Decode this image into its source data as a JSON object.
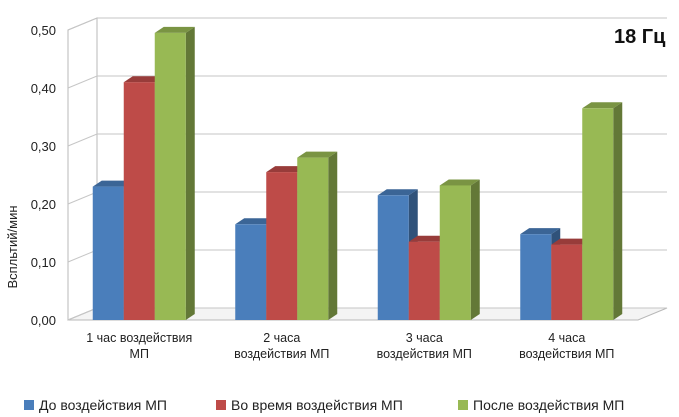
{
  "chart_data": {
    "type": "bar",
    "style": "3d-clustered",
    "annotation": "18 Гц",
    "ylabel": "Вспльтий/мин",
    "xlabel": "",
    "ylim": [
      0,
      0.5
    ],
    "yticks": [
      "0,00",
      "0,10",
      "0,20",
      "0,30",
      "0,40",
      "0,50"
    ],
    "grid": true,
    "legend_position": "bottom",
    "categories": [
      [
        "1 час воздействия",
        "МП"
      ],
      [
        "2 часа",
        "воздействия МП"
      ],
      [
        "3 часа",
        "воздействия МП"
      ],
      [
        "4 часа",
        "воздействия МП"
      ]
    ],
    "series": [
      {
        "name": "До воздействия МП",
        "color": "#4a7ebb",
        "values": [
          0.23,
          0.165,
          0.215,
          0.148
        ]
      },
      {
        "name": "Во время воздействия МП",
        "color": "#be4b48",
        "values": [
          0.41,
          0.255,
          0.135,
          0.13
        ]
      },
      {
        "name": "После воздействия МП",
        "color": "#98b954",
        "values": [
          0.495,
          0.28,
          0.232,
          0.365
        ]
      }
    ]
  }
}
